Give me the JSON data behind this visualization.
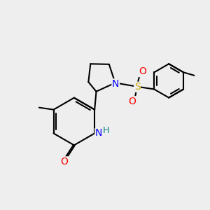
{
  "bg_color": "#eeeeee",
  "bond_color": "#000000",
  "atom_colors": {
    "N": "#0000ff",
    "O": "#ff0000",
    "S": "#ccaa00",
    "H": "#008080",
    "C": "#000000"
  },
  "bond_width": 1.5,
  "fig_size": [
    3.0,
    3.0
  ],
  "dpi": 100,
  "xlim": [
    0,
    10
  ],
  "ylim": [
    0,
    10
  ]
}
